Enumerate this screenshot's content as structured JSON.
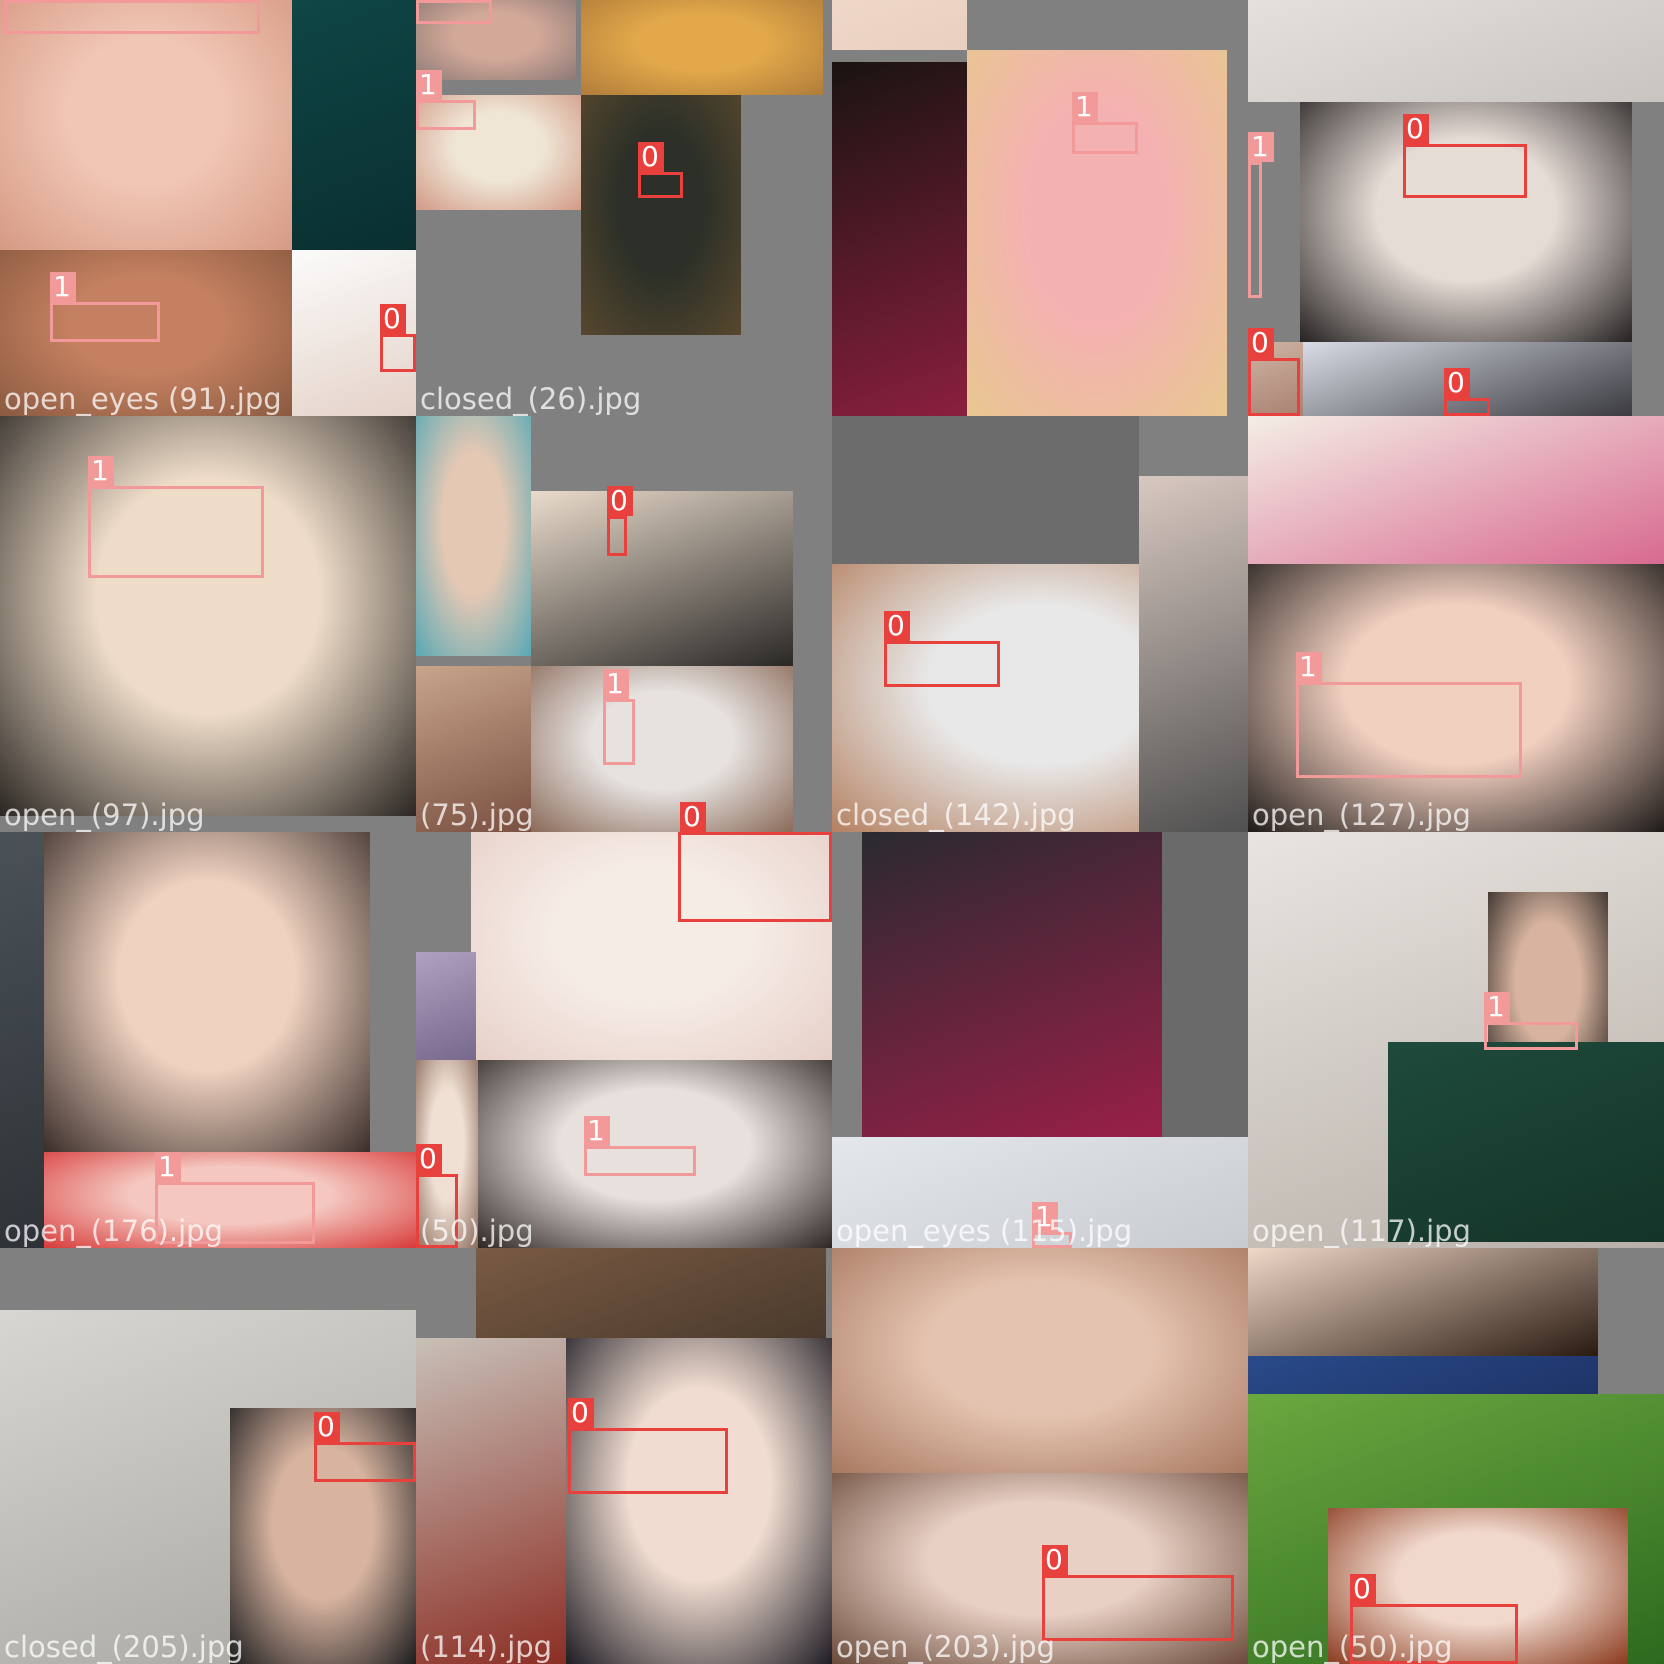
{
  "colors": {
    "background": "#ffffff",
    "mosaic_padding": "#808080",
    "class_0_box": "#e8403d",
    "class_1_box": "#f29a9a",
    "caption_text": "#ffffff"
  },
  "tiles": [
    {
      "caption": "open_eyes (91).jpg",
      "pieces": [
        {
          "kind": "face",
          "colors": [
            "#f0c6b4",
            "#d69a84"
          ]
        },
        {
          "kind": "photo",
          "colors": [
            "#0f4646",
            "#0a2f30"
          ]
        },
        {
          "kind": "face",
          "colors": [
            "#c48060",
            "#8a5a40"
          ]
        },
        {
          "kind": "photo",
          "colors": [
            "#fbfbfb",
            "#e4d2c8"
          ]
        }
      ],
      "boxes": [
        {
          "cls": "1"
        },
        {
          "cls": "1"
        },
        {
          "cls": "0"
        }
      ]
    },
    {
      "caption": "closed_(26).jpg",
      "pieces": [
        {
          "kind": "face",
          "colors": [
            "#d2a898",
            "#8c7a76"
          ]
        },
        {
          "kind": "face",
          "colors": [
            "#e2a84a",
            "#b07c3a"
          ]
        },
        {
          "kind": "face",
          "colors": [
            "#f0e6d6",
            "#d19a86"
          ]
        },
        {
          "kind": "face",
          "colors": [
            "#2c3028",
            "#58482e"
          ]
        }
      ],
      "boxes": [
        {
          "cls": "1"
        },
        {
          "cls": "1"
        },
        {
          "cls": "0"
        }
      ]
    },
    {
      "caption": "",
      "pieces": [
        {
          "kind": "photo",
          "colors": [
            "#f0d8c8",
            "#e8cfc0"
          ]
        },
        {
          "kind": "photo",
          "colors": [
            "#1a1410",
            "#8a1f3e"
          ]
        },
        {
          "kind": "face",
          "colors": [
            "#f4b1b1",
            "#e8c890"
          ]
        }
      ],
      "boxes": [
        {
          "cls": "1"
        }
      ]
    },
    {
      "caption": "",
      "pieces": [
        {
          "kind": "photo",
          "colors": [
            "#e4e0dc",
            "#c8c4c0"
          ]
        },
        {
          "kind": "face",
          "colors": [
            "#e6dcd6",
            "#262222"
          ]
        },
        {
          "kind": "photo",
          "colors": [
            "#d0b4a4",
            "#a88070"
          ]
        },
        {
          "kind": "photo",
          "colors": [
            "#d8dce4",
            "#3a3a40"
          ]
        }
      ],
      "boxes": [
        {
          "cls": "0"
        },
        {
          "cls": "1"
        },
        {
          "cls": "0"
        },
        {
          "cls": "0"
        }
      ]
    },
    {
      "caption": "open_(97).jpg",
      "pieces": [
        {
          "kind": "face",
          "colors": [
            "#eedcc8",
            "#2a2622"
          ]
        }
      ],
      "boxes": [
        {
          "cls": "1"
        }
      ]
    },
    {
      "caption": "(75).jpg",
      "pieces": [
        {
          "kind": "face",
          "colors": [
            "#e4c8b4",
            "#58a8b4"
          ]
        },
        {
          "kind": "photo",
          "colors": [
            "#eadccc",
            "#2a2826"
          ]
        },
        {
          "kind": "photo",
          "colors": [
            "#c8a48c",
            "#7a5040"
          ]
        },
        {
          "kind": "face",
          "colors": [
            "#e6e2e0",
            "#8a6a58"
          ]
        }
      ],
      "boxes": [
        {
          "cls": "0"
        },
        {
          "cls": "1"
        },
        {
          "cls": "0"
        }
      ]
    },
    {
      "caption": "closed_(142).jpg",
      "pieces": [
        {
          "kind": "photo",
          "colors": [
            "#6c6c6c",
            "#6c6c6c"
          ]
        },
        {
          "kind": "face",
          "colors": [
            "#e8e8e8",
            "#b48060"
          ]
        },
        {
          "kind": "photo",
          "colors": [
            "#d8c8c0",
            "#505050"
          ]
        }
      ],
      "boxes": [
        {
          "cls": "0"
        }
      ]
    },
    {
      "caption": "open_(127).jpg",
      "pieces": [
        {
          "kind": "photo",
          "colors": [
            "#f4eee6",
            "#d86a90"
          ]
        },
        {
          "kind": "face",
          "colors": [
            "#f2d0c0",
            "#1e1a18"
          ]
        }
      ],
      "boxes": [
        {
          "cls": "1"
        }
      ]
    },
    {
      "caption": "open_(176).jpg",
      "pieces": [
        {
          "kind": "face",
          "colors": [
            "#f0d2c0",
            "#3a2e2a"
          ]
        },
        {
          "kind": "face",
          "colors": [
            "#f4c8c0",
            "#d83a3a"
          ]
        },
        {
          "kind": "photo",
          "colors": [
            "#4a5258",
            "#2e3236"
          ]
        }
      ],
      "boxes": [
        {
          "cls": "1"
        }
      ]
    },
    {
      "caption": "(50).jpg",
      "pieces": [
        {
          "kind": "face",
          "colors": [
            "#f6ece6",
            "#e6d0c8"
          ]
        },
        {
          "kind": "photo",
          "colors": [
            "#b0a0c0",
            "#6a5a80"
          ]
        },
        {
          "kind": "face",
          "colors": [
            "#e8e0dc",
            "#2e2622"
          ]
        },
        {
          "kind": "face",
          "colors": [
            "#f0e0d4",
            "#8a6a5a"
          ]
        }
      ],
      "boxes": [
        {
          "cls": "0"
        },
        {
          "cls": "1"
        },
        {
          "cls": "0"
        }
      ]
    },
    {
      "caption": "open_eyes (115).jpg",
      "pieces": [
        {
          "kind": "photo",
          "colors": [
            "#2a2a30",
            "#9a1f48"
          ]
        },
        {
          "kind": "photo",
          "colors": [
            "#6a6a6a",
            "#6a6a6a"
          ]
        },
        {
          "kind": "photo",
          "colors": [
            "#e4e8ec",
            "#c8ccd0"
          ]
        }
      ],
      "boxes": [
        {
          "cls": "1"
        }
      ]
    },
    {
      "caption": "open_(117).jpg",
      "pieces": [
        {
          "kind": "photo",
          "colors": [
            "#e8e4e0",
            "#b8b0a8"
          ]
        },
        {
          "kind": "face",
          "colors": [
            "#d8b4a0",
            "#2c2622"
          ]
        },
        {
          "kind": "photo",
          "colors": [
            "#1e4a3c",
            "#143428"
          ]
        }
      ],
      "boxes": [
        {
          "cls": "1"
        }
      ]
    },
    {
      "caption": "closed_(205).jpg",
      "pieces": [
        {
          "kind": "photo",
          "colors": [
            "#d8d6d2",
            "#a8a6a0"
          ]
        },
        {
          "kind": "face",
          "colors": [
            "#d8b4a0",
            "#1c1c1e"
          ]
        }
      ],
      "boxes": [
        {
          "cls": "0"
        }
      ]
    },
    {
      "caption": "(114).jpg",
      "pieces": [
        {
          "kind": "photo",
          "colors": [
            "#7a5a44",
            "#4a3a2c"
          ]
        },
        {
          "kind": "photo",
          "colors": [
            "#c8c0b8",
            "#8a2a20"
          ]
        },
        {
          "kind": "face",
          "colors": [
            "#f0dcd0",
            "#1e1c24"
          ]
        }
      ],
      "boxes": [
        {
          "cls": "0"
        }
      ]
    },
    {
      "caption": "open_(203).jpg",
      "pieces": [
        {
          "kind": "face",
          "colors": [
            "#e4c4b0",
            "#a87860"
          ]
        },
        {
          "kind": "face",
          "colors": [
            "#e8d0c4",
            "#6a4a3a"
          ]
        }
      ],
      "boxes": [
        {
          "cls": "0"
        }
      ]
    },
    {
      "caption": "open_(50).jpg",
      "pieces": [
        {
          "kind": "photo",
          "colors": [
            "#f0d8c8",
            "#2a1a10"
          ]
        },
        {
          "kind": "photo",
          "colors": [
            "#2a4a8a",
            "#1e3468"
          ]
        },
        {
          "kind": "photo",
          "colors": [
            "#6aa840",
            "#2e6a1e"
          ]
        },
        {
          "kind": "face",
          "colors": [
            "#f0d8cc",
            "#8a3a1e"
          ]
        }
      ],
      "boxes": [
        {
          "cls": "0"
        }
      ]
    }
  ]
}
